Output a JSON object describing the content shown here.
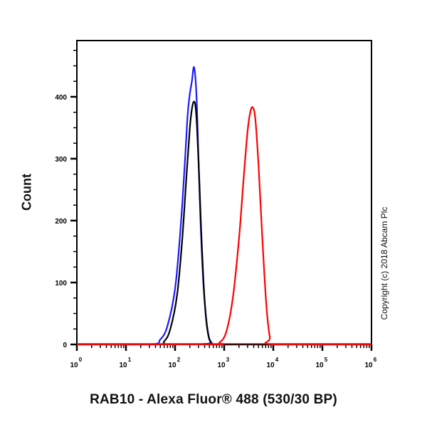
{
  "chart_data": {
    "type": "line",
    "title": "",
    "xlabel": "RAB10 - Alexa Fluor® 488 (530/30 BP)",
    "ylabel": "Count",
    "x_scale": "log",
    "xlim": [
      1,
      1000000
    ],
    "ylim": [
      0,
      480
    ],
    "x_tick_labels": [
      "10^0",
      "10^1",
      "10^2",
      "10^3",
      "10^4",
      "10^5",
      "10^6"
    ],
    "y_tick_labels": [
      "0",
      "100",
      "200",
      "300",
      "400"
    ],
    "grid": false,
    "legend": null,
    "annotations": [
      "Copyright (c) 2018 Abcam Plc"
    ],
    "series": [
      {
        "name": "blue",
        "color": "#1a1aff",
        "x": [
          30,
          50,
          70,
          100,
          130,
          160,
          180,
          200,
          220,
          240,
          260,
          280,
          300,
          330,
          370,
          420,
          480,
          550,
          650
        ],
        "y": [
          0,
          8,
          30,
          90,
          190,
          300,
          370,
          405,
          425,
          448,
          430,
          380,
          300,
          200,
          110,
          50,
          15,
          3,
          0
        ]
      },
      {
        "name": "black",
        "color": "#000000",
        "x": [
          40,
          60,
          80,
          110,
          140,
          170,
          200,
          220,
          240,
          260,
          280,
          310,
          340,
          380,
          430,
          490,
          560,
          650
        ],
        "y": [
          0,
          5,
          25,
          80,
          170,
          270,
          350,
          380,
          392,
          385,
          350,
          270,
          185,
          100,
          40,
          10,
          2,
          0
        ]
      },
      {
        "name": "red",
        "color": "#ff0000",
        "x": [
          550,
          800,
          1100,
          1500,
          2000,
          2500,
          3000,
          3400,
          3800,
          4300,
          5000,
          6000,
          7200,
          8500,
          10000
        ],
        "y": [
          0,
          3,
          20,
          75,
          170,
          270,
          345,
          375,
          383,
          365,
          290,
          170,
          65,
          12,
          0
        ]
      }
    ]
  },
  "labels": {
    "xlabel": "RAB10 - Alexa Fluor® 488 (530/30 BP)",
    "ylabel": "Count",
    "copyright": "Copyright (c) 2018 Abcam Plc"
  }
}
